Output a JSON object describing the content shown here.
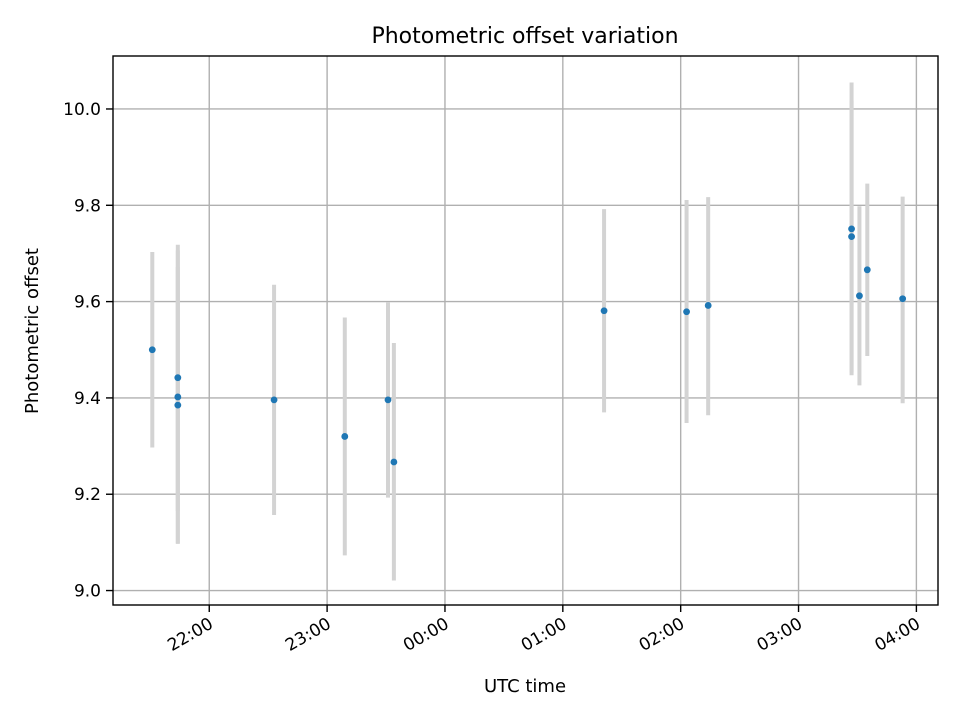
{
  "chart_data": {
    "type": "scatter",
    "title": "Photometric offset variation",
    "xlabel": "UTC time",
    "ylabel": "Photometric offset",
    "x_ticks": [
      "22:00",
      "23:00",
      "00:00",
      "01:00",
      "02:00",
      "03:00",
      "04:00"
    ],
    "y_ticks": [
      "9.0",
      "9.2",
      "9.4",
      "9.6",
      "9.8",
      "10.0"
    ],
    "xlim": [
      "21:11",
      "04:11"
    ],
    "ylim": [
      8.97,
      10.11
    ],
    "grid": true,
    "legend": "none",
    "marker_color": "#1f77b4",
    "errorbar_color": "#d3d3d3",
    "series": [
      {
        "points": [
          {
            "time": "21:31",
            "y": 9.5,
            "yerr_low": 9.297,
            "yerr_high": 9.703
          },
          {
            "time": "21:44",
            "y": 9.442,
            "yerr_low": 9.165,
            "yerr_high": 9.718
          },
          {
            "time": "21:44",
            "y": 9.402,
            "yerr_low": 9.097,
            "yerr_high": 9.706
          },
          {
            "time": "21:44",
            "y": 9.385,
            "yerr_low": 9.098,
            "yerr_high": 9.672
          },
          {
            "time": "22:33",
            "y": 9.396,
            "yerr_low": 9.157,
            "yerr_high": 9.635
          },
          {
            "time": "23:09",
            "y": 9.32,
            "yerr_low": 9.073,
            "yerr_high": 9.567
          },
          {
            "time": "23:31",
            "y": 9.396,
            "yerr_low": 9.193,
            "yerr_high": 9.599
          },
          {
            "time": "23:34",
            "y": 9.267,
            "yerr_low": 9.021,
            "yerr_high": 9.514
          },
          {
            "time": "01:21",
            "y": 9.581,
            "yerr_low": 9.37,
            "yerr_high": 9.792
          },
          {
            "time": "02:03",
            "y": 9.579,
            "yerr_low": 9.348,
            "yerr_high": 9.811
          },
          {
            "time": "02:14",
            "y": 9.592,
            "yerr_low": 9.364,
            "yerr_high": 9.817
          },
          {
            "time": "03:27",
            "y": 9.751,
            "yerr_low": 9.447,
            "yerr_high": 10.055
          },
          {
            "time": "03:27",
            "y": 9.735,
            "yerr_low": 9.453,
            "yerr_high": 10.017
          },
          {
            "time": "03:31",
            "y": 9.612,
            "yerr_low": 9.426,
            "yerr_high": 9.798
          },
          {
            "time": "03:35",
            "y": 9.666,
            "yerr_low": 9.487,
            "yerr_high": 9.845
          },
          {
            "time": "03:53",
            "y": 9.606,
            "yerr_low": 9.389,
            "yerr_high": 9.818
          }
        ]
      }
    ]
  }
}
